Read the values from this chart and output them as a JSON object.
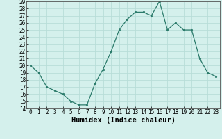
{
  "x": [
    0,
    1,
    2,
    3,
    4,
    5,
    6,
    7,
    8,
    9,
    10,
    11,
    12,
    13,
    14,
    15,
    16,
    17,
    18,
    19,
    20,
    21,
    22,
    23
  ],
  "y": [
    20,
    19,
    17,
    16.5,
    16,
    15,
    14.5,
    14.5,
    17.5,
    19.5,
    22,
    25,
    26.5,
    27.5,
    27.5,
    27,
    29,
    25,
    26,
    25,
    25,
    21,
    19,
    18.5
  ],
  "line_color": "#2a7a6a",
  "marker_color": "#2a7a6a",
  "bg_color": "#d4f0ec",
  "grid_color": "#b8ddd8",
  "xlabel": "Humidex (Indice chaleur)",
  "xlim": [
    -0.5,
    23.5
  ],
  "ylim": [
    14,
    29
  ],
  "yticks": [
    14,
    15,
    16,
    17,
    18,
    19,
    20,
    21,
    22,
    23,
    24,
    25,
    26,
    27,
    28,
    29
  ],
  "xticks": [
    0,
    1,
    2,
    3,
    4,
    5,
    6,
    7,
    8,
    9,
    10,
    11,
    12,
    13,
    14,
    15,
    16,
    17,
    18,
    19,
    20,
    21,
    22,
    23
  ],
  "tick_label_fontsize": 5.5,
  "xlabel_fontsize": 7.5
}
